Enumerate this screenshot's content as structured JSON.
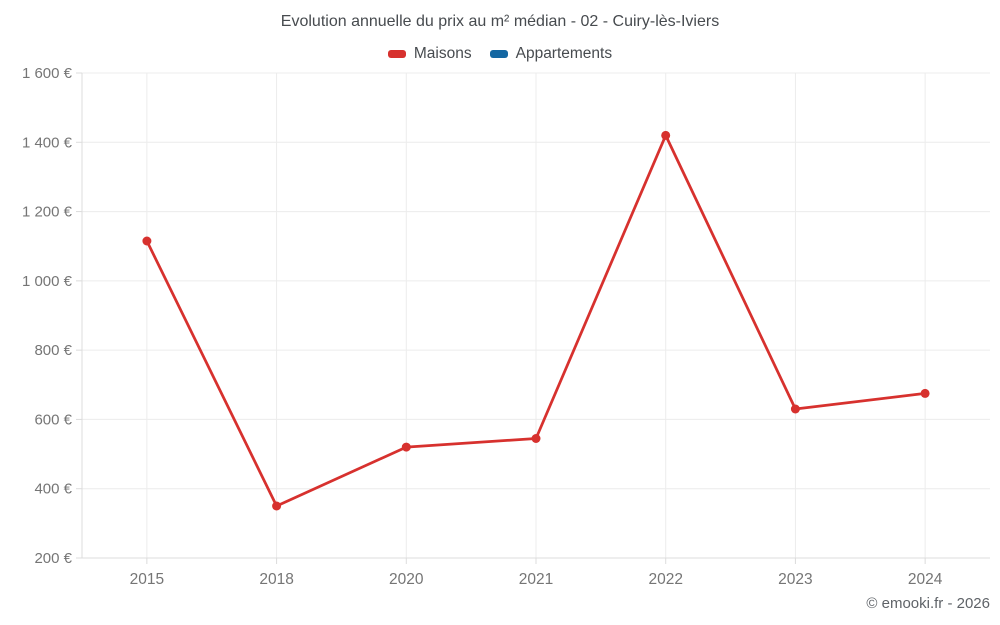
{
  "chart_data": {
    "type": "line",
    "title": "Evolution annuelle du prix au m² médian - 02 - Cuiry-lès-Iviers",
    "categories": [
      "2015",
      "2018",
      "2020",
      "2021",
      "2022",
      "2023",
      "2024"
    ],
    "series": [
      {
        "name": "Maisons",
        "color": "#d7312e",
        "values": [
          1115,
          350,
          520,
          545,
          1420,
          630,
          675
        ]
      },
      {
        "name": "Appartements",
        "color": "#1467a2",
        "values": []
      }
    ],
    "xlabel": "",
    "ylabel": "",
    "ylim": [
      200,
      1600
    ],
    "y_ticks": [
      {
        "value": 200,
        "label": "200 €"
      },
      {
        "value": 400,
        "label": "400 €"
      },
      {
        "value": 600,
        "label": "600 €"
      },
      {
        "value": 800,
        "label": "800 €"
      },
      {
        "value": 1000,
        "label": "1 000 €"
      },
      {
        "value": 1200,
        "label": "1 200 €"
      },
      {
        "value": 1400,
        "label": "1 400 €"
      },
      {
        "value": 1600,
        "label": "1 600 €"
      }
    ],
    "grid": true,
    "legend_position": "top",
    "colors": {
      "grid": "#ececec",
      "axis": "#dcdcdc",
      "tick_text": "#757575"
    }
  },
  "footer": {
    "copyright": "© emooki.fr - 2026"
  }
}
